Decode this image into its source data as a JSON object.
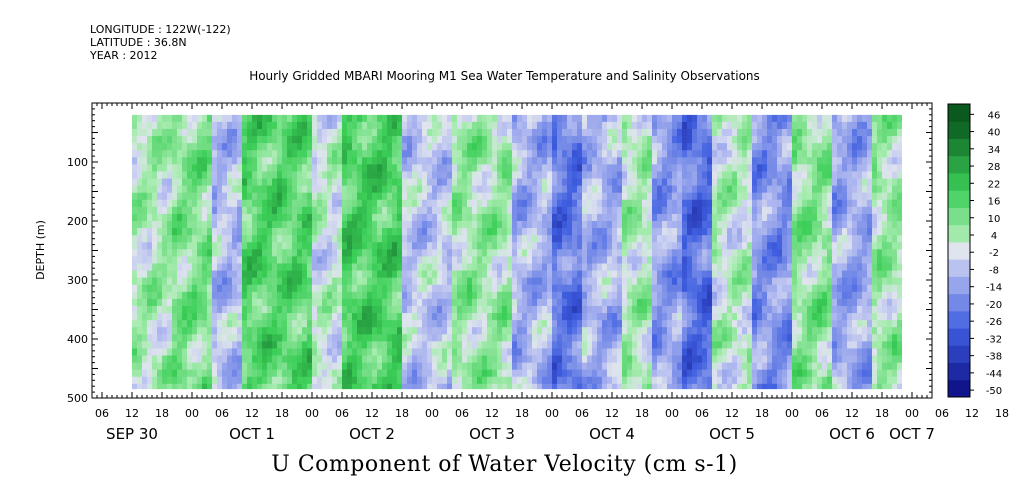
{
  "header": {
    "longitude": "LONGITUDE : 122W(-122)",
    "latitude": "LATITUDE : 36.8N",
    "year": "YEAR : 2012"
  },
  "title": "Hourly Gridded MBARI Mooring M1 Sea Water Temperature and Salinity Observations",
  "variable_label": "U Component of Water Velocity (cm s-1)",
  "chart_data": {
    "type": "heatmap",
    "title": "Hourly Gridded MBARI Mooring M1 Sea Water Temperature and Salinity Observations",
    "xlabel": "",
    "ylabel": "DEPTH (m)",
    "colorbar_label": "U Component of Water Velocity (cm s-1)",
    "x_unit": "hours since SEP 30 00:00, 2012",
    "xlim": [
      4,
      172
    ],
    "x_data_range": [
      12,
      166
    ],
    "ylim": [
      500,
      0
    ],
    "y_ticks": [
      100,
      200,
      300,
      400,
      500
    ],
    "y_minor_ticks": [
      150,
      250,
      350,
      450
    ],
    "x_hour_labels": [
      "06",
      "12",
      "18",
      "00",
      "06",
      "12",
      "18",
      "00",
      "06",
      "12",
      "18",
      "00",
      "06",
      "12",
      "18",
      "00",
      "06",
      "12",
      "18",
      "00",
      "06",
      "12",
      "18",
      "00",
      "06",
      "12",
      "18",
      "00",
      "06",
      "12",
      "18",
      "00",
      "06",
      "12",
      "18",
      "00"
    ],
    "x_hour_label_start": 6,
    "x_day_labels": [
      {
        "label": "SEP 30",
        "hour": 12
      },
      {
        "label": "OCT  1",
        "hour": 36
      },
      {
        "label": "OCT  2",
        "hour": 60
      },
      {
        "label": "OCT  3",
        "hour": 84
      },
      {
        "label": "OCT  4",
        "hour": 108
      },
      {
        "label": "OCT  5",
        "hour": 132
      },
      {
        "label": "OCT  6",
        "hour": 156
      },
      {
        "label": "OCT  7",
        "hour": 168
      }
    ],
    "colorbar_levels": [
      -50,
      -44,
      -38,
      -32,
      -26,
      -20,
      -14,
      -8,
      -2,
      4,
      10,
      16,
      22,
      28,
      34,
      40,
      46
    ],
    "colorbar_ticks": [
      "46",
      "40",
      "34",
      "28",
      "22",
      "16",
      "10",
      "4",
      "-2",
      "-8",
      "-14",
      "-20",
      "-26",
      "-32",
      "-38",
      "-44",
      "-50"
    ],
    "column_velocity_pattern_cm_s": [
      {
        "hours": [
          12,
          20
        ],
        "value": 6
      },
      {
        "hours": [
          20,
          28
        ],
        "value": 12
      },
      {
        "hours": [
          28,
          34
        ],
        "value": -6
      },
      {
        "hours": [
          34,
          48
        ],
        "value": 18
      },
      {
        "hours": [
          48,
          54
        ],
        "value": 2
      },
      {
        "hours": [
          54,
          66
        ],
        "value": 20
      },
      {
        "hours": [
          66,
          76
        ],
        "value": -4
      },
      {
        "hours": [
          76,
          88
        ],
        "value": 8
      },
      {
        "hours": [
          88,
          96
        ],
        "value": -8
      },
      {
        "hours": [
          96,
          102
        ],
        "value": -20
      },
      {
        "hours": [
          102,
          110
        ],
        "value": -8
      },
      {
        "hours": [
          110,
          116
        ],
        "value": 6
      },
      {
        "hours": [
          116,
          122
        ],
        "value": -12
      },
      {
        "hours": [
          122,
          128
        ],
        "value": -22
      },
      {
        "hours": [
          128,
          136
        ],
        "value": 4
      },
      {
        "hours": [
          136,
          144
        ],
        "value": -14
      },
      {
        "hours": [
          144,
          152
        ],
        "value": 10
      },
      {
        "hours": [
          152,
          160
        ],
        "value": -10
      },
      {
        "hours": [
          160,
          166
        ],
        "value": 8
      }
    ],
    "colors": {
      "neg_strong": "#0a0a80",
      "neg_mid": "#3f5fe0",
      "neg_weak": "#b4bcf0",
      "zero": "#dfe4ee",
      "pos_weak": "#a8ecb0",
      "pos_mid": "#3ccf58",
      "pos_strong": "#0a5a20"
    }
  }
}
